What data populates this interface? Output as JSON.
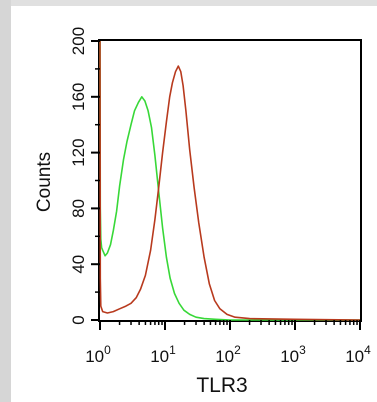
{
  "chart_data": {
    "type": "line",
    "title": "",
    "xlabel": "TLR3",
    "ylabel": "Counts",
    "xscale": "log",
    "xlim": [
      1,
      10000
    ],
    "ylim": [
      0,
      200
    ],
    "x_ticks": [
      {
        "value": 1,
        "base": "10",
        "exp": "0"
      },
      {
        "value": 10,
        "base": "10",
        "exp": "1"
      },
      {
        "value": 100,
        "base": "10",
        "exp": "2"
      },
      {
        "value": 1000,
        "base": "10",
        "exp": "3"
      },
      {
        "value": 10000,
        "base": "10",
        "exp": "4"
      }
    ],
    "y_ticks": [
      0,
      40,
      80,
      120,
      160,
      200
    ],
    "grid": false,
    "legend": null,
    "series": [
      {
        "color": "#38d838",
        "x": [
          1.0,
          1.01,
          1.03,
          1.06,
          1.1,
          1.2,
          1.3,
          1.45,
          1.6,
          1.8,
          2.0,
          2.3,
          2.6,
          3.0,
          3.4,
          3.9,
          4.4,
          4.9,
          5.5,
          6.2,
          7.0,
          8.0,
          9.2,
          10.5,
          12,
          14,
          16.5,
          19.5,
          24,
          30,
          40,
          60,
          100,
          1000,
          10000
        ],
        "y": [
          200,
          80,
          58,
          52,
          50,
          46,
          48,
          54,
          64,
          78,
          96,
          115,
          128,
          140,
          150,
          156,
          160,
          157,
          150,
          138,
          118,
          92,
          66,
          45,
          30,
          19,
          12,
          7,
          4,
          2,
          1,
          0.5,
          0,
          0,
          0
        ]
      },
      {
        "color": "#b83a1e",
        "x": [
          1.0,
          1.01,
          1.03,
          1.1,
          1.3,
          1.6,
          2.0,
          2.5,
          3.0,
          3.6,
          4.2,
          5.0,
          6.0,
          7.0,
          8.0,
          9.2,
          10.5,
          11.8,
          13,
          14.5,
          16,
          17.5,
          19,
          21,
          24,
          28,
          33,
          40,
          48,
          58,
          70,
          90,
          120,
          200,
          1000,
          10000
        ],
        "y": [
          200,
          30,
          10,
          6,
          5,
          6,
          8,
          10,
          12,
          16,
          22,
          32,
          50,
          72,
          95,
          120,
          142,
          160,
          170,
          178,
          182,
          178,
          168,
          150,
          122,
          95,
          70,
          45,
          26,
          14,
          8,
          4,
          2,
          1,
          0.5,
          0
        ]
      }
    ]
  }
}
